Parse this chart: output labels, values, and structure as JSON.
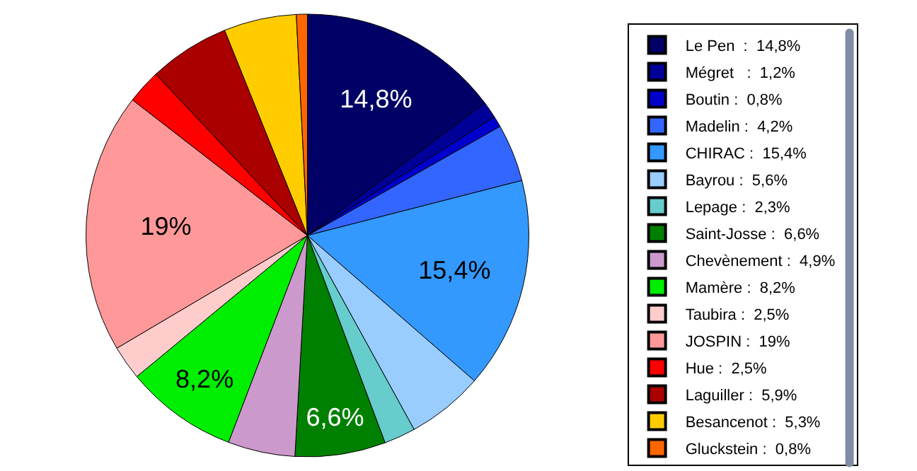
{
  "chart_data": {
    "type": "pie",
    "categories": [
      "Le Pen  :  14,8%",
      "Mégret   :  1,2%",
      "Boutin :  0,8%",
      "Madelin :  4,2%",
      "CHIRAC :  15,4%",
      "Bayrou :  5,6%",
      "Lepage :  2,3%",
      "Saint-Josse :  6,6%",
      "Chevènement :  4,9%",
      "Mamère :  8,2%",
      "Taubira :  2,5%",
      "JOSPIN :  19%",
      "Hue :  2,5%",
      "Laguiller :  5,9%",
      "Besancenot :  5,3%",
      "Gluckstein :  0,8%"
    ],
    "values": [
      14.8,
      1.2,
      0.8,
      4.2,
      15.4,
      5.6,
      2.3,
      6.6,
      4.9,
      8.2,
      2.5,
      19,
      2.5,
      5.9,
      5.3,
      0.8
    ],
    "colors": [
      "#000066",
      "#000099",
      "#0000cc",
      "#3366ff",
      "#3399ff",
      "#99ccff",
      "#66cccc",
      "#008000",
      "#cc99cc",
      "#00ee00",
      "#ffcccc",
      "#ff9999",
      "#ff0000",
      "#aa0000",
      "#ffcc00",
      "#ff6600"
    ],
    "value_labels": [
      "14,8%",
      null,
      null,
      null,
      "15,4%",
      null,
      null,
      "6,6%",
      null,
      "8,2%",
      null,
      "19%",
      null,
      null,
      null,
      null
    ],
    "legend": "right"
  }
}
